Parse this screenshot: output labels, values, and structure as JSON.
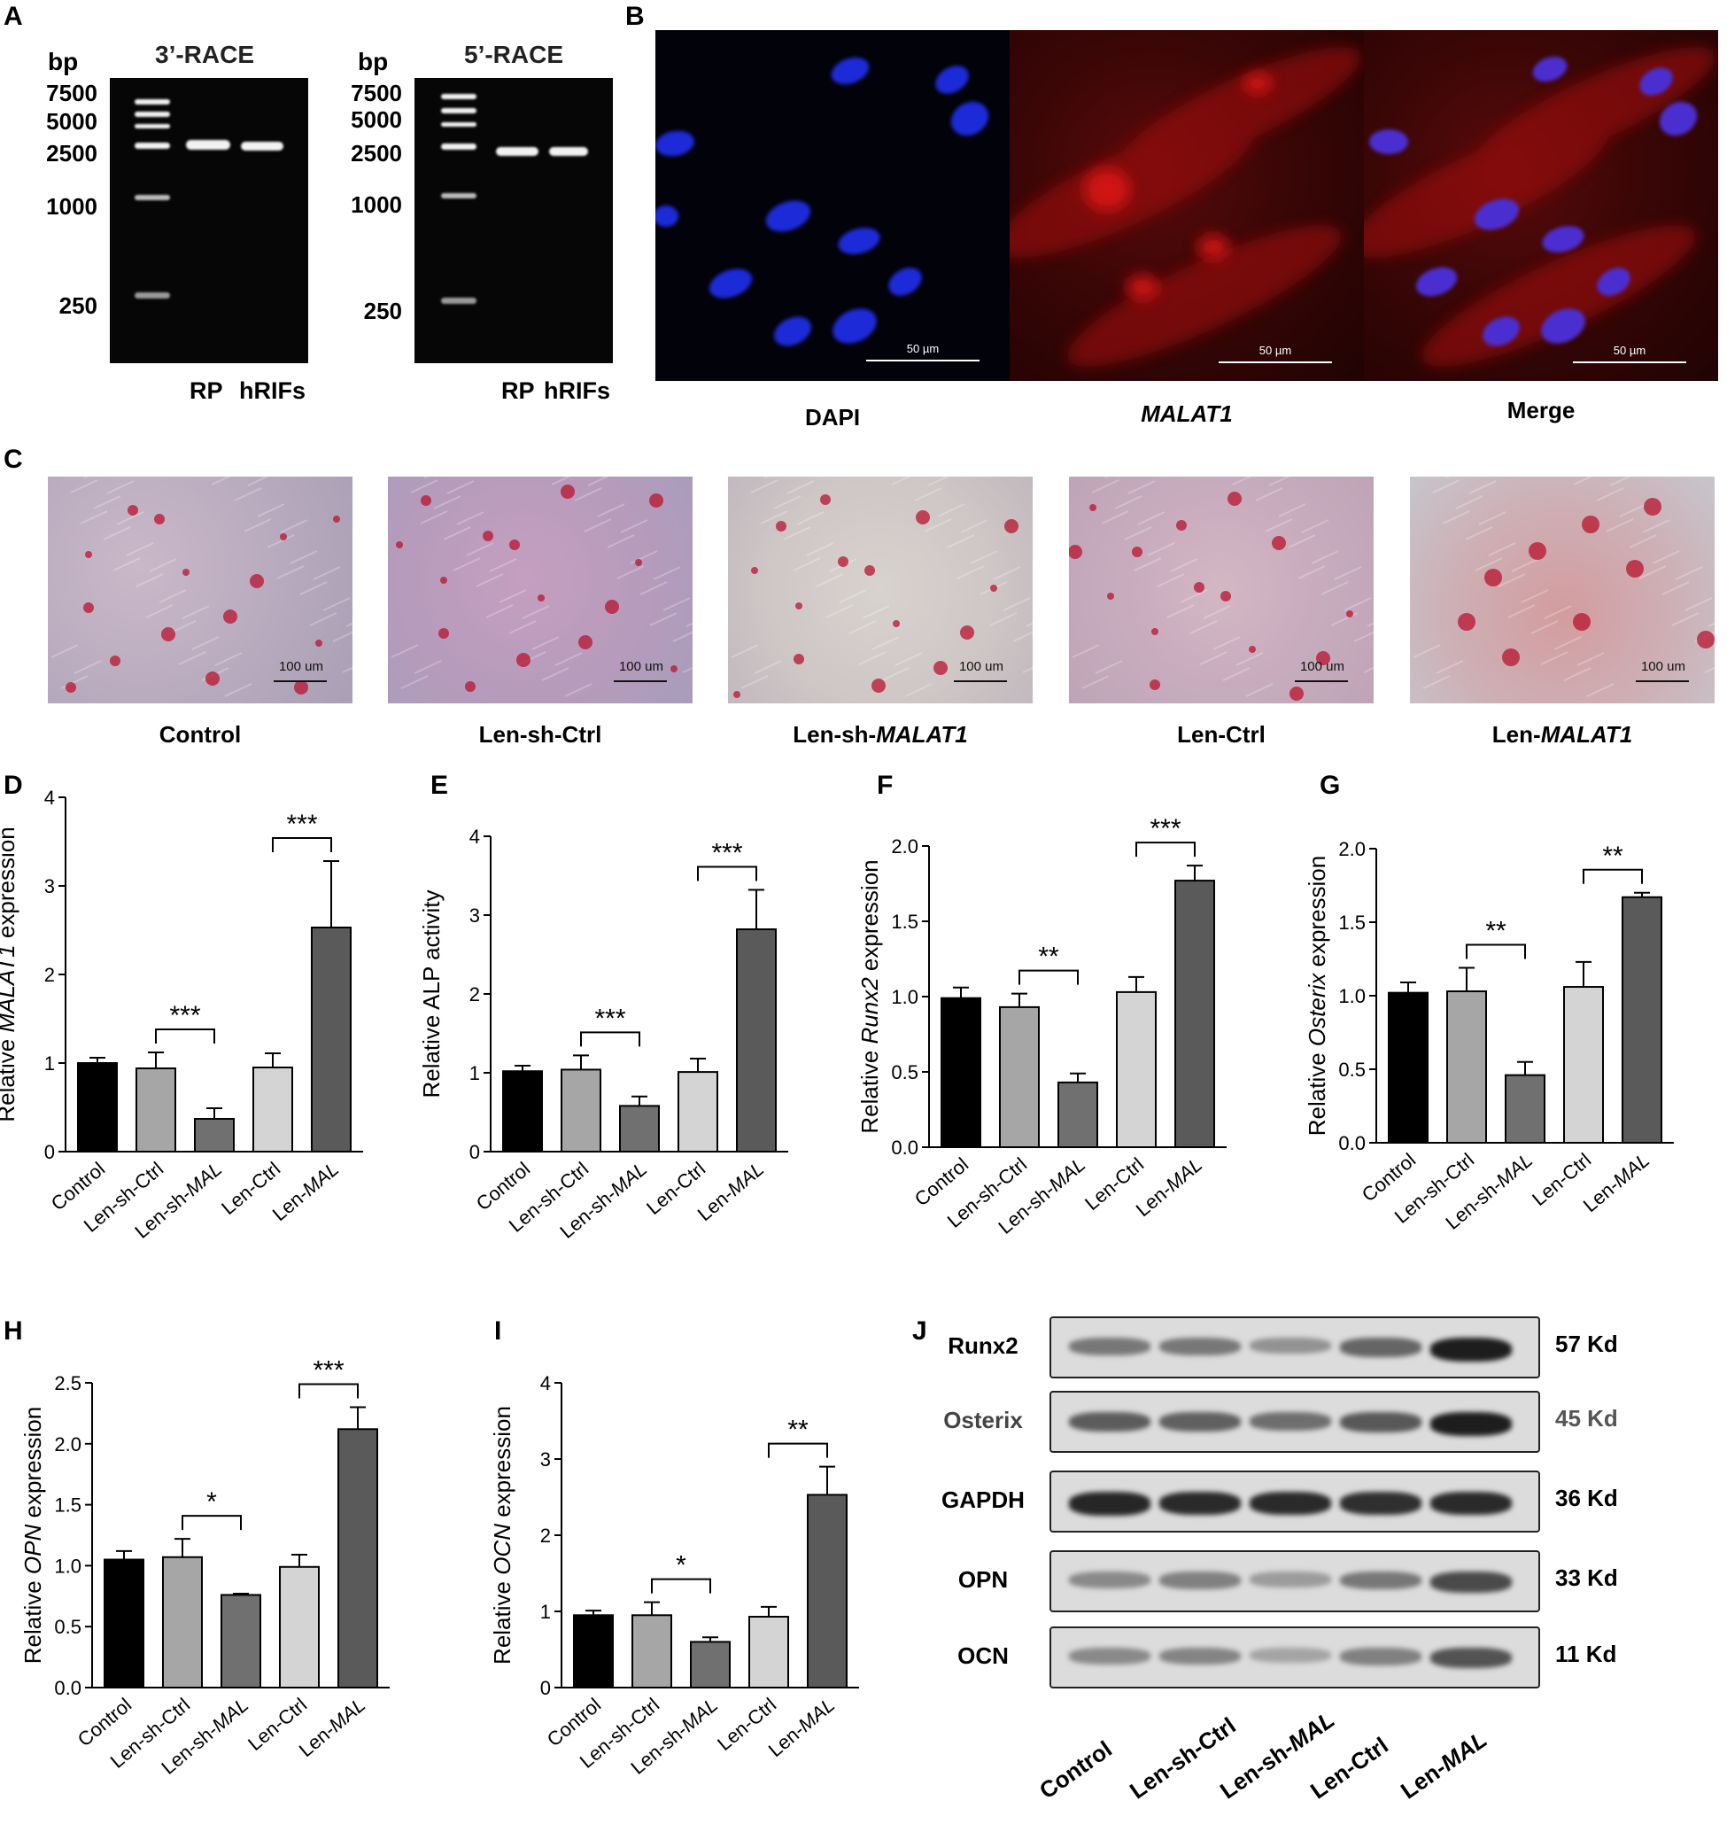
{
  "panels": {
    "A": "A",
    "B": "B",
    "C": "C",
    "D": "D",
    "E": "E",
    "F": "F",
    "G": "G",
    "H": "H",
    "I": "I",
    "J": "J"
  },
  "panelA": {
    "gel1_title": "3’-RACE",
    "gel2_title": "5’-RACE",
    "bp": "bp",
    "ladder": [
      "7500",
      "5000",
      "2500",
      "1000",
      "250"
    ],
    "lanes": [
      "RP",
      "hRIFs"
    ]
  },
  "panelB": {
    "labels": [
      "DAPI",
      "MALAT1",
      "Merge"
    ],
    "scale": "50 µm"
  },
  "panelC": {
    "labels": [
      {
        "pre": "Control",
        "it": "",
        "post": ""
      },
      {
        "pre": "Len-sh-Ctrl",
        "it": "",
        "post": ""
      },
      {
        "pre": "Len-sh-",
        "it": "MALAT1",
        "post": ""
      },
      {
        "pre": "Len-Ctrl",
        "it": "",
        "post": ""
      },
      {
        "pre": "Len-",
        "it": "MALAT1",
        "post": ""
      }
    ],
    "scale": "100 um"
  },
  "colors": {
    "bar_fills": [
      "#000000",
      "#a6a6a6",
      "#707070",
      "#d4d4d4",
      "#5a5a5a"
    ]
  },
  "chart_data": [
    {
      "id": "D",
      "type": "bar",
      "categories": [
        {
          "pre": "Control",
          "it": ""
        },
        {
          "pre": "Len-sh-Ctrl",
          "it": ""
        },
        {
          "pre": "Len-sh-",
          "it": "MAL"
        },
        {
          "pre": "Len-Ctrl",
          "it": ""
        },
        {
          "pre": "Len-",
          "it": "MAL"
        }
      ],
      "values": [
        1.0,
        0.94,
        0.37,
        0.95,
        2.53
      ],
      "errors": [
        0.06,
        0.18,
        0.12,
        0.16,
        0.75
      ],
      "ylim": [
        0,
        4
      ],
      "ticks": [
        "0",
        "1",
        "2",
        "3",
        "4"
      ],
      "ylabel": {
        "pre": "Relative ",
        "it": "MALAT1",
        "post": " expression"
      },
      "sig": [
        {
          "from": 1,
          "to": 2,
          "label": "***"
        },
        {
          "from": 3,
          "to": 4,
          "label": "***"
        }
      ]
    },
    {
      "id": "E",
      "type": "bar",
      "categories": [
        {
          "pre": "Control",
          "it": ""
        },
        {
          "pre": "Len-sh-Ctrl",
          "it": ""
        },
        {
          "pre": "Len-sh-",
          "it": "MAL"
        },
        {
          "pre": "Len-Ctrl",
          "it": ""
        },
        {
          "pre": "Len-",
          "it": "MAL"
        }
      ],
      "values": [
        1.02,
        1.04,
        0.58,
        1.01,
        2.82
      ],
      "errors": [
        0.07,
        0.18,
        0.12,
        0.17,
        0.5
      ],
      "ylim": [
        0,
        4
      ],
      "ticks": [
        "0",
        "1",
        "2",
        "3",
        "4"
      ],
      "ylabel": {
        "pre": "Relative ALP activity",
        "it": "",
        "post": ""
      },
      "sig": [
        {
          "from": 1,
          "to": 2,
          "label": "***"
        },
        {
          "from": 3,
          "to": 4,
          "label": "***"
        }
      ]
    },
    {
      "id": "F",
      "type": "bar",
      "categories": [
        {
          "pre": "Control",
          "it": ""
        },
        {
          "pre": "Len-sh-Ctrl",
          "it": ""
        },
        {
          "pre": "Len-sh-",
          "it": "MAL"
        },
        {
          "pre": "Len-Ctrl",
          "it": ""
        },
        {
          "pre": "Len-",
          "it": "MAL"
        }
      ],
      "values": [
        0.99,
        0.93,
        0.43,
        1.03,
        1.77
      ],
      "errors": [
        0.07,
        0.09,
        0.06,
        0.1,
        0.1
      ],
      "ylim": [
        0,
        2.0
      ],
      "ticks": [
        "0.0",
        "0.5",
        "1.0",
        "1.5",
        "2.0"
      ],
      "ylabel": {
        "pre": "Relative ",
        "it": "Runx2",
        "post": " expression"
      },
      "sig": [
        {
          "from": 1,
          "to": 2,
          "label": "**"
        },
        {
          "from": 3,
          "to": 4,
          "label": "***"
        }
      ]
    },
    {
      "id": "G",
      "type": "bar",
      "categories": [
        {
          "pre": "Control",
          "it": ""
        },
        {
          "pre": "Len-sh-Ctrl",
          "it": ""
        },
        {
          "pre": "Len-sh-",
          "it": "MAL"
        },
        {
          "pre": "Len-Ctrl",
          "it": ""
        },
        {
          "pre": "Len-",
          "it": "MAL"
        }
      ],
      "values": [
        1.02,
        1.03,
        0.46,
        1.06,
        1.67
      ],
      "errors": [
        0.07,
        0.16,
        0.09,
        0.17,
        0.03
      ],
      "ylim": [
        0,
        2.0
      ],
      "ticks": [
        "0.0",
        "0.5",
        "1.0",
        "1.5",
        "2.0"
      ],
      "ylabel": {
        "pre": "Relative ",
        "it": "Osterix",
        "post": " expression"
      },
      "sig": [
        {
          "from": 1,
          "to": 2,
          "label": "**"
        },
        {
          "from": 3,
          "to": 4,
          "label": "**"
        }
      ]
    },
    {
      "id": "H",
      "type": "bar",
      "categories": [
        {
          "pre": "Control",
          "it": ""
        },
        {
          "pre": "Len-sh-Ctrl",
          "it": ""
        },
        {
          "pre": "Len-sh-",
          "it": "MAL"
        },
        {
          "pre": "Len-Ctrl",
          "it": ""
        },
        {
          "pre": "Len-",
          "it": "MAL"
        }
      ],
      "values": [
        1.05,
        1.07,
        0.76,
        0.99,
        2.12
      ],
      "errors": [
        0.07,
        0.15,
        0.01,
        0.1,
        0.18
      ],
      "ylim": [
        0,
        2.5
      ],
      "ticks": [
        "0.0",
        "0.5",
        "1.0",
        "1.5",
        "2.0",
        "2.5"
      ],
      "ylabel": {
        "pre": "Relative ",
        "it": "OPN",
        "post": " expression"
      },
      "sig": [
        {
          "from": 1,
          "to": 2,
          "label": "*"
        },
        {
          "from": 3,
          "to": 4,
          "label": "***"
        }
      ]
    },
    {
      "id": "I",
      "type": "bar",
      "categories": [
        {
          "pre": "Control",
          "it": ""
        },
        {
          "pre": "Len-sh-Ctrl",
          "it": ""
        },
        {
          "pre": "Len-sh-",
          "it": "MAL"
        },
        {
          "pre": "Len-Ctrl",
          "it": ""
        },
        {
          "pre": "Len-",
          "it": "MAL"
        }
      ],
      "values": [
        0.95,
        0.95,
        0.6,
        0.93,
        2.53
      ],
      "errors": [
        0.06,
        0.17,
        0.06,
        0.13,
        0.37
      ],
      "ylim": [
        0,
        4
      ],
      "ticks": [
        "0",
        "1",
        "2",
        "3",
        "4"
      ],
      "ylabel": {
        "pre": "Relative ",
        "it": "OCN",
        "post": " expression"
      },
      "sig": [
        {
          "from": 1,
          "to": 2,
          "label": "*"
        },
        {
          "from": 3,
          "to": 4,
          "label": "**"
        }
      ]
    }
  ],
  "panelJ": {
    "proteins": [
      {
        "name": "Runx2",
        "kd": "57 Kd",
        "intensity": [
          0.45,
          0.45,
          0.3,
          0.55,
          0.95
        ]
      },
      {
        "name": "Osterix",
        "kd": "45 Kd",
        "intensity": [
          0.6,
          0.58,
          0.5,
          0.62,
          0.95
        ]
      },
      {
        "name": "GAPDH",
        "kd": "36 Kd",
        "intensity": [
          0.9,
          0.88,
          0.88,
          0.85,
          0.88
        ]
      },
      {
        "name": "OPN",
        "kd": "33 Kd",
        "intensity": [
          0.35,
          0.4,
          0.25,
          0.45,
          0.7
        ]
      },
      {
        "name": "OCN",
        "kd": "11 Kd",
        "intensity": [
          0.35,
          0.38,
          0.2,
          0.4,
          0.65
        ]
      }
    ],
    "lanes": [
      {
        "pre": "Control",
        "it": ""
      },
      {
        "pre": "Len-sh-Ctrl",
        "it": ""
      },
      {
        "pre": "Len-sh-",
        "it": "MAL"
      },
      {
        "pre": "Len-Ctrl",
        "it": ""
      },
      {
        "pre": "Len-",
        "it": "MAL"
      }
    ]
  }
}
